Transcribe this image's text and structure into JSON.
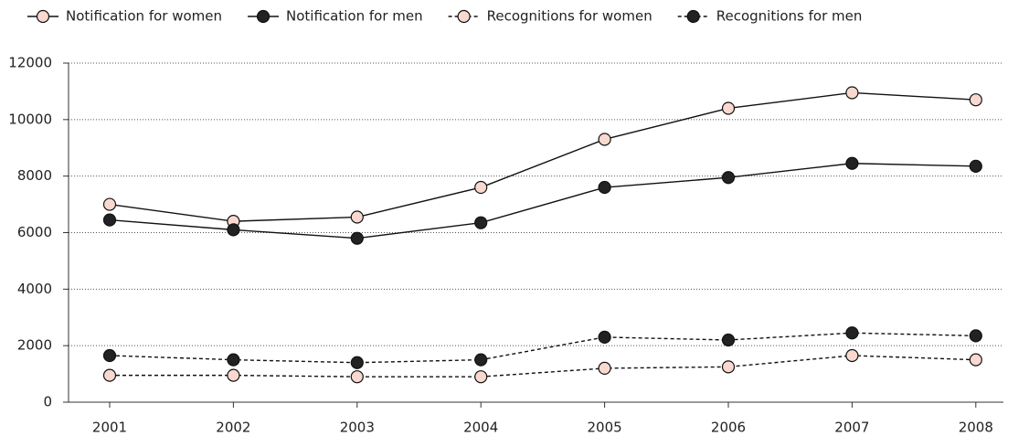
{
  "chart_data": {
    "type": "line",
    "categories": [
      "2001",
      "2002",
      "2003",
      "2004",
      "2005",
      "2006",
      "2007",
      "2008"
    ],
    "series": [
      {
        "name": "Notification for women",
        "color": "#f9d9cf",
        "dashed": false,
        "values": [
          7000,
          6400,
          6550,
          7600,
          9300,
          10400,
          10950,
          10700
        ]
      },
      {
        "name": "Notification for men",
        "color": "#222222",
        "dashed": false,
        "values": [
          6450,
          6100,
          5800,
          6350,
          7600,
          7950,
          8450,
          8350
        ]
      },
      {
        "name": "Recognitions for women",
        "color": "#f9d9cf",
        "dashed": true,
        "values": [
          950,
          950,
          900,
          900,
          1200,
          1250,
          1650,
          1500
        ]
      },
      {
        "name": "Recognitions for men",
        "color": "#222222",
        "dashed": true,
        "values": [
          1650,
          1500,
          1400,
          1500,
          2300,
          2200,
          2450,
          2350
        ]
      }
    ],
    "ylim": [
      0,
      12000
    ],
    "yticks": [
      0,
      2000,
      4000,
      6000,
      8000,
      10000,
      12000
    ],
    "grid": true
  }
}
